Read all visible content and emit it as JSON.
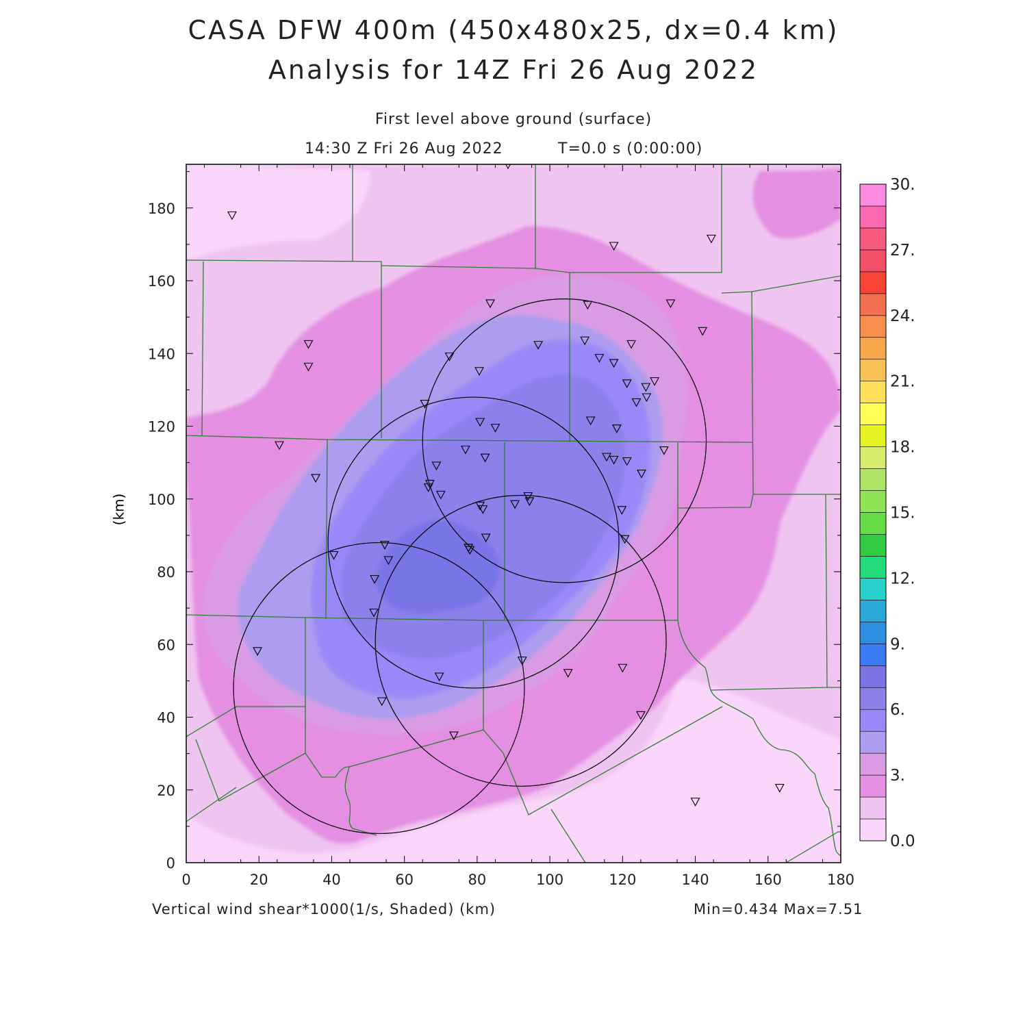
{
  "title": "CASA DFW 400m (450x480x25, dx=0.4 km)",
  "subtitle": "Analysis for 14Z Fri 26 Aug 2022",
  "level_text": "First level above ground (surface)",
  "time_text": "14:30 Z Fri 26 Aug 2022",
  "elapsed_text": "T=0.0 s (0:00:00)",
  "field_label": "Vertical wind shear*1000(1/s, Shaded)  (km)",
  "minmax_text": "Min=0.434 Max=7.51",
  "colors": {
    "frame": "#000000",
    "county_lines": "#2e7d32",
    "radar_rings": "#000000"
  },
  "chart_data": {
    "type": "heatmap",
    "title": "CASA DFW 400m (450x480x25, dx=0.4 km)",
    "xlabel": "(km)",
    "ylabel": "(km)",
    "xlim": [
      0,
      180
    ],
    "ylim": [
      0,
      192
    ],
    "x_ticks": [
      "0",
      "20",
      "40",
      "60",
      "80",
      "100",
      "120",
      "140",
      "160",
      "180"
    ],
    "y_ticks": [
      "0",
      "20",
      "40",
      "60",
      "80",
      "100",
      "120",
      "140",
      "160",
      "180"
    ],
    "colorbar": {
      "labels": [
        "0.0",
        "3.",
        "6.",
        "9.",
        "12.",
        "15.",
        "18.",
        "21.",
        "24.",
        "27.",
        "30."
      ],
      "min": 0,
      "max": 30,
      "step": 1.5,
      "colors": [
        "#fbd6fb",
        "#f0c4f0",
        "#e48fe2",
        "#d99ce4",
        "#ad9cef",
        "#9b88f8",
        "#8c80ea",
        "#7a74e6",
        "#3b7bf5",
        "#2b8ee0",
        "#2aa8d8",
        "#27d0c8",
        "#22dc7c",
        "#32cc44",
        "#66dd44",
        "#8fe455",
        "#b0e466",
        "#d8ec6e",
        "#e6f422",
        "#ffff55",
        "#ffe05a",
        "#f8c256",
        "#f8a84a",
        "#f88f4c",
        "#f47050",
        "#f84434",
        "#f4506a",
        "#f75a7f",
        "#fd68b0",
        "#fd8ce0"
      ]
    },
    "shear_field_levels": [
      {
        "level": 0.0,
        "color": "#fbd6fb"
      },
      {
        "level": 1.5,
        "color": "#f0c4f0"
      },
      {
        "level": 3.0,
        "color": "#e48fe2"
      },
      {
        "level": 4.5,
        "color": "#d99ce4"
      },
      {
        "level": 4.5,
        "color": "#ad9cef"
      },
      {
        "level": 6.0,
        "color": "#9b88f8"
      },
      {
        "level": 6.0,
        "color": "#8c80ea"
      },
      {
        "level": 7.5,
        "color": "#7a74e6"
      }
    ],
    "min": 0.434,
    "max": 7.51,
    "radar_rings": [
      {
        "cx": 104,
        "cy": 116,
        "r": 39
      },
      {
        "cx": 79,
        "cy": 88,
        "r": 40
      },
      {
        "cx": 92,
        "cy": 61,
        "r": 40
      },
      {
        "cx": 53,
        "cy": 48,
        "r": 40
      }
    ],
    "stations": [
      [
        12.6,
        178
      ],
      [
        88.5,
        192
      ],
      [
        117.6,
        169.6
      ],
      [
        144.4,
        171.6
      ],
      [
        33.6,
        142.6
      ],
      [
        33.6,
        136.4
      ],
      [
        83.6,
        153.8
      ],
      [
        110.4,
        153.4
      ],
      [
        133.2,
        153.8
      ],
      [
        142,
        146.2
      ],
      [
        96.8,
        142.4
      ],
      [
        109.6,
        143.6
      ],
      [
        122.4,
        142.6
      ],
      [
        72.4,
        139.2
      ],
      [
        113.6,
        138.8
      ],
      [
        117.6,
        137.4
      ],
      [
        80.6,
        135.2
      ],
      [
        121.2,
        131.8
      ],
      [
        126.4,
        130.8
      ],
      [
        128.8,
        132.4
      ],
      [
        126.6,
        128.0
      ],
      [
        123.8,
        126.6
      ],
      [
        65.6,
        126.2
      ],
      [
        80.8,
        121.2
      ],
      [
        85.0,
        119.6
      ],
      [
        111.2,
        121.6
      ],
      [
        118.4,
        119.4
      ],
      [
        25.6,
        114.8
      ],
      [
        76.8,
        113.6
      ],
      [
        82.2,
        111.4
      ],
      [
        115.6,
        111.6
      ],
      [
        117.6,
        110.8
      ],
      [
        121.2,
        110.4
      ],
      [
        131.4,
        113.4
      ],
      [
        125.2,
        107.0
      ],
      [
        35.6,
        105.8
      ],
      [
        68.8,
        109.2
      ],
      [
        67.0,
        104.2
      ],
      [
        66.6,
        103.2
      ],
      [
        70.0,
        101.2
      ],
      [
        94.0,
        100.8
      ],
      [
        94.4,
        99.4
      ],
      [
        90.4,
        98.6
      ],
      [
        80.8,
        98.2
      ],
      [
        81.6,
        97.2
      ],
      [
        119.8,
        97.0
      ],
      [
        82.4,
        89.4
      ],
      [
        120.6,
        89.0
      ],
      [
        54.6,
        87.4
      ],
      [
        77.6,
        86.6
      ],
      [
        78.0,
        86.0
      ],
      [
        40.6,
        84.6
      ],
      [
        55.6,
        83.2
      ],
      [
        51.8,
        78.0
      ],
      [
        51.6,
        68.8
      ],
      [
        19.6,
        58.2
      ],
      [
        92.4,
        55.6
      ],
      [
        120.0,
        53.6
      ],
      [
        105.0,
        52.2
      ],
      [
        69.6,
        51.2
      ],
      [
        53.8,
        44.4
      ],
      [
        125.0,
        40.6
      ],
      [
        73.6,
        35.0
      ],
      [
        163.2,
        20.6
      ],
      [
        140.0,
        16.8
      ]
    ]
  }
}
